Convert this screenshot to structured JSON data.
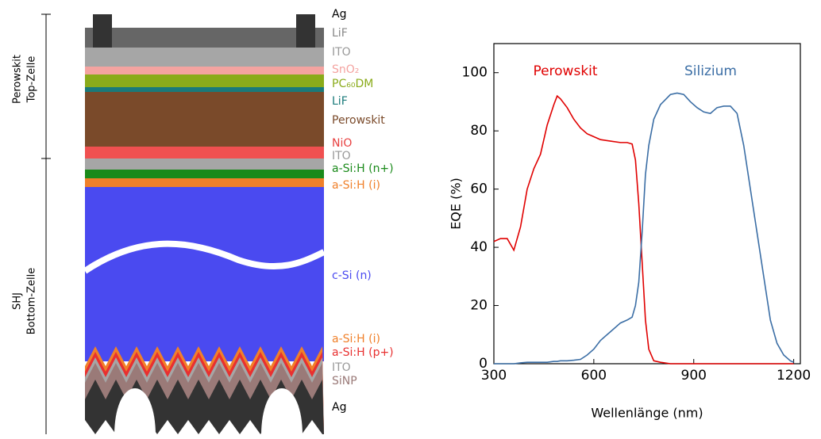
{
  "diagram": {
    "side_labels": [
      {
        "lines": [
          "Perowskit",
          "Top-Zelle"
        ]
      },
      {
        "lines": [
          "SHJ",
          "Bottom-Zelle"
        ]
      }
    ],
    "layer_labels": [
      {
        "text": "Ag",
        "color": "#000000"
      },
      {
        "text": "LiF",
        "color": "#888888"
      },
      {
        "text": "ITO",
        "color": "#999999"
      },
      {
        "text": "SnO₂",
        "color": "#f4a3a0"
      },
      {
        "text": "PC₆₀DM",
        "color": "#8aab1a"
      },
      {
        "text": "LiF",
        "color": "#1a7a7a"
      },
      {
        "text": "Perowskit",
        "color": "#7a4a2a"
      },
      {
        "text": "NiO",
        "color": "#e84040"
      },
      {
        "text": "ITO",
        "color": "#999999"
      },
      {
        "text": "a-Si:H (n+)",
        "color": "#1a8a1a"
      },
      {
        "text": "a-Si:H (i)",
        "color": "#f0802a"
      },
      {
        "text": "c-Si (n)",
        "color": "#4a4af0"
      },
      {
        "text": "a-Si:H (i)",
        "color": "#f0802a"
      },
      {
        "text": "a-Si:H (p+)",
        "color": "#e83030"
      },
      {
        "text": "ITO",
        "color": "#999999"
      },
      {
        "text": "SiNP",
        "color": "#9a7a78"
      },
      {
        "text": "Ag",
        "color": "#000000"
      }
    ]
  },
  "chart_data": {
    "type": "line",
    "xlabel": "Wellenlänge (nm)",
    "ylabel": "EQE (%)",
    "x": [
      300,
      320,
      340,
      360,
      380,
      400,
      420,
      440,
      460,
      480,
      490,
      500,
      520,
      540,
      560,
      580,
      600,
      620,
      650,
      680,
      700,
      715,
      725,
      735,
      745,
      755,
      765,
      780,
      800,
      830,
      850,
      870,
      890,
      910,
      930,
      950,
      970,
      990,
      1010,
      1030,
      1050,
      1070,
      1090,
      1110,
      1130,
      1150,
      1170,
      1190,
      1200
    ],
    "series": [
      {
        "name": "Perowskit",
        "color": "#e00000",
        "values": [
          42,
          43,
          43,
          39,
          47,
          60,
          67,
          72,
          82,
          89,
          92,
          91,
          88,
          84,
          81,
          79,
          78,
          77,
          76.5,
          76,
          76,
          75.5,
          70,
          55,
          35,
          15,
          5,
          1,
          0.5,
          0,
          0,
          0,
          0,
          0,
          0,
          0,
          0,
          0,
          0,
          0,
          0,
          0,
          0,
          0,
          0,
          0,
          0,
          0,
          0
        ]
      },
      {
        "name": "Silizium",
        "color": "#3b6ea5",
        "values": [
          0,
          0,
          0,
          0,
          0.3,
          0.5,
          0.5,
          0.5,
          0.5,
          0.8,
          0.8,
          1,
          1,
          1.2,
          1.5,
          3,
          5,
          8,
          11,
          14,
          15,
          16,
          20,
          28,
          45,
          65,
          75,
          84,
          89,
          92.5,
          93,
          92.5,
          90,
          88,
          86.5,
          86,
          88,
          88.5,
          88.5,
          86,
          75,
          60,
          45,
          30,
          15,
          7,
          3,
          1,
          0.5
        ]
      }
    ],
    "xlim": [
      300,
      1220
    ],
    "ylim": [
      0,
      110
    ],
    "xticks": [
      300,
      600,
      900,
      1200
    ],
    "yticks": [
      0,
      20,
      40,
      60,
      80,
      100
    ]
  }
}
